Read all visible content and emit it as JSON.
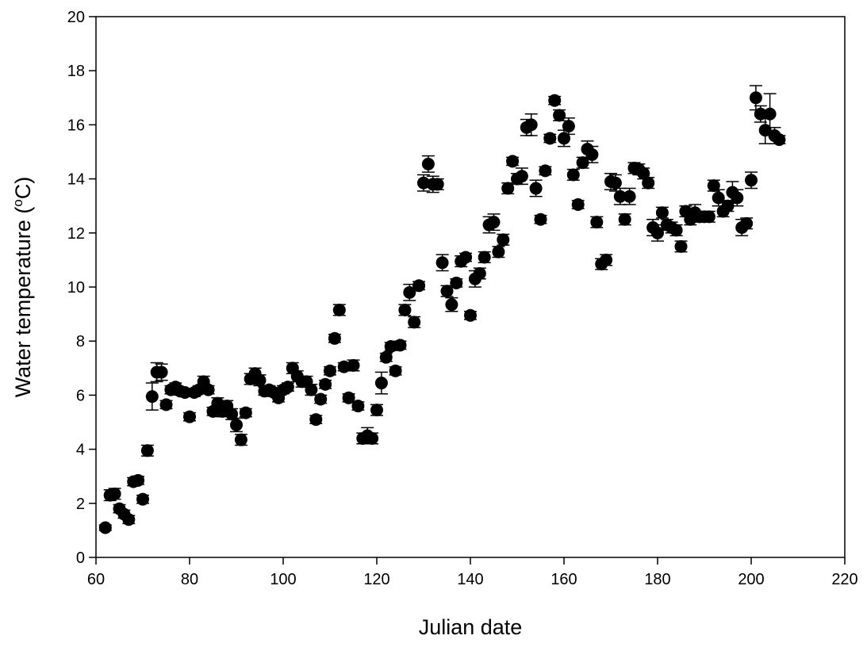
{
  "chart_data": {
    "type": "scatter",
    "xlabel": "Julian date",
    "ylabel": [
      "Water temperature (",
      "o",
      "C)"
    ],
    "xlim": [
      60,
      220
    ],
    "xticks": [
      60,
      80,
      100,
      120,
      140,
      160,
      180,
      200,
      220
    ],
    "ylim": [
      0,
      20
    ],
    "yticks": [
      0,
      2,
      4,
      6,
      8,
      10,
      12,
      14,
      16,
      18,
      20
    ],
    "color": "#000000",
    "x": [
      62,
      63,
      64,
      65,
      66,
      67,
      68,
      69,
      70,
      71,
      72,
      73,
      74,
      75,
      76,
      77,
      78,
      79,
      80,
      81,
      82,
      83,
      84,
      85,
      86,
      87,
      88,
      89,
      90,
      91,
      92,
      93,
      94,
      95,
      96,
      97,
      98,
      99,
      100,
      101,
      102,
      103,
      104,
      105,
      106,
      107,
      108,
      109,
      110,
      111,
      112,
      113,
      114,
      115,
      116,
      117,
      118,
      119,
      120,
      121,
      122,
      123,
      124,
      125,
      126,
      127,
      128,
      129,
      130,
      131,
      132,
      133,
      134,
      135,
      136,
      137,
      138,
      139,
      140,
      141,
      142,
      143,
      144,
      145,
      146,
      147,
      148,
      149,
      150,
      151,
      152,
      153,
      154,
      155,
      156,
      157,
      158,
      159,
      160,
      161,
      162,
      163,
      164,
      165,
      166,
      167,
      168,
      169,
      170,
      171,
      172,
      173,
      174,
      175,
      176,
      177,
      178,
      179,
      180,
      181,
      182,
      183,
      184,
      185,
      186,
      187,
      188,
      189,
      190,
      191,
      192,
      193,
      194,
      195,
      196,
      197,
      198,
      199,
      200,
      201,
      202,
      203,
      204,
      205,
      206
    ],
    "values": [
      1.1,
      2.3,
      2.35,
      1.8,
      1.6,
      1.4,
      2.8,
      2.85,
      2.15,
      3.95,
      5.95,
      6.85,
      6.85,
      5.65,
      6.2,
      6.3,
      6.15,
      6.1,
      5.2,
      6.1,
      6.2,
      6.5,
      6.2,
      5.4,
      5.7,
      5.4,
      5.6,
      5.3,
      4.9,
      4.35,
      5.35,
      6.6,
      6.8,
      6.55,
      6.15,
      6.2,
      6.1,
      5.9,
      6.2,
      6.3,
      7.0,
      6.7,
      6.5,
      6.5,
      6.2,
      5.1,
      5.85,
      6.4,
      6.9,
      8.1,
      9.15,
      7.05,
      5.9,
      7.1,
      5.6,
      4.4,
      4.5,
      4.4,
      5.45,
      6.45,
      7.4,
      7.8,
      6.9,
      7.85,
      9.15,
      9.8,
      8.7,
      10.05,
      13.85,
      14.55,
      13.8,
      13.8,
      10.9,
      9.85,
      9.35,
      10.15,
      10.95,
      11.1,
      8.95,
      10.3,
      10.5,
      11.1,
      12.3,
      12.4,
      11.3,
      11.75,
      13.65,
      14.65,
      14.0,
      14.1,
      15.9,
      16.0,
      13.65,
      12.5,
      14.3,
      15.5,
      16.9,
      16.35,
      15.5,
      15.95,
      14.15,
      13.05,
      14.6,
      15.1,
      14.9,
      12.4,
      10.85,
      11.0,
      13.9,
      13.85,
      13.35,
      12.5,
      13.35,
      14.4,
      14.35,
      14.2,
      13.85,
      12.2,
      12.0,
      12.75,
      12.3,
      12.2,
      12.1,
      11.5,
      12.8,
      12.5,
      12.75,
      12.6,
      12.6,
      12.6,
      13.75,
      13.3,
      12.8,
      13.0,
      13.5,
      13.3,
      12.2,
      12.35,
      13.95,
      17.0,
      16.4,
      15.8,
      16.4,
      15.6,
      15.45
    ],
    "errors": [
      0.1,
      0.2,
      0.2,
      0.15,
      0.15,
      0.15,
      0.15,
      0.15,
      0.15,
      0.2,
      0.5,
      0.35,
      0.3,
      0.15,
      0.15,
      0.15,
      0.15,
      0.15,
      0.15,
      0.15,
      0.15,
      0.2,
      0.15,
      0.15,
      0.2,
      0.2,
      0.2,
      0.2,
      0.25,
      0.2,
      0.15,
      0.2,
      0.2,
      0.2,
      0.15,
      0.15,
      0.15,
      0.15,
      0.15,
      0.15,
      0.2,
      0.2,
      0.2,
      0.2,
      0.2,
      0.15,
      0.15,
      0.15,
      0.15,
      0.15,
      0.2,
      0.15,
      0.15,
      0.2,
      0.15,
      0.2,
      0.3,
      0.2,
      0.2,
      0.4,
      0.15,
      0.15,
      0.15,
      0.15,
      0.2,
      0.3,
      0.2,
      0.15,
      0.3,
      0.3,
      0.3,
      0.2,
      0.3,
      0.2,
      0.25,
      0.15,
      0.2,
      0.15,
      0.15,
      0.3,
      0.2,
      0.2,
      0.3,
      0.3,
      0.2,
      0.2,
      0.2,
      0.15,
      0.2,
      0.3,
      0.3,
      0.4,
      0.3,
      0.15,
      0.15,
      0.15,
      0.15,
      0.2,
      0.3,
      0.3,
      0.2,
      0.15,
      0.2,
      0.3,
      0.3,
      0.2,
      0.2,
      0.2,
      0.3,
      0.3,
      0.3,
      0.2,
      0.3,
      0.2,
      0.2,
      0.2,
      0.2,
      0.3,
      0.3,
      0.2,
      0.2,
      0.2,
      0.2,
      0.2,
      0.2,
      0.2,
      0.3,
      0.2,
      0.2,
      0.2,
      0.2,
      0.3,
      0.2,
      0.2,
      0.4,
      0.3,
      0.3,
      0.2,
      0.3,
      0.45,
      0.3,
      0.5,
      0.75,
      0.3,
      0.15
    ]
  }
}
